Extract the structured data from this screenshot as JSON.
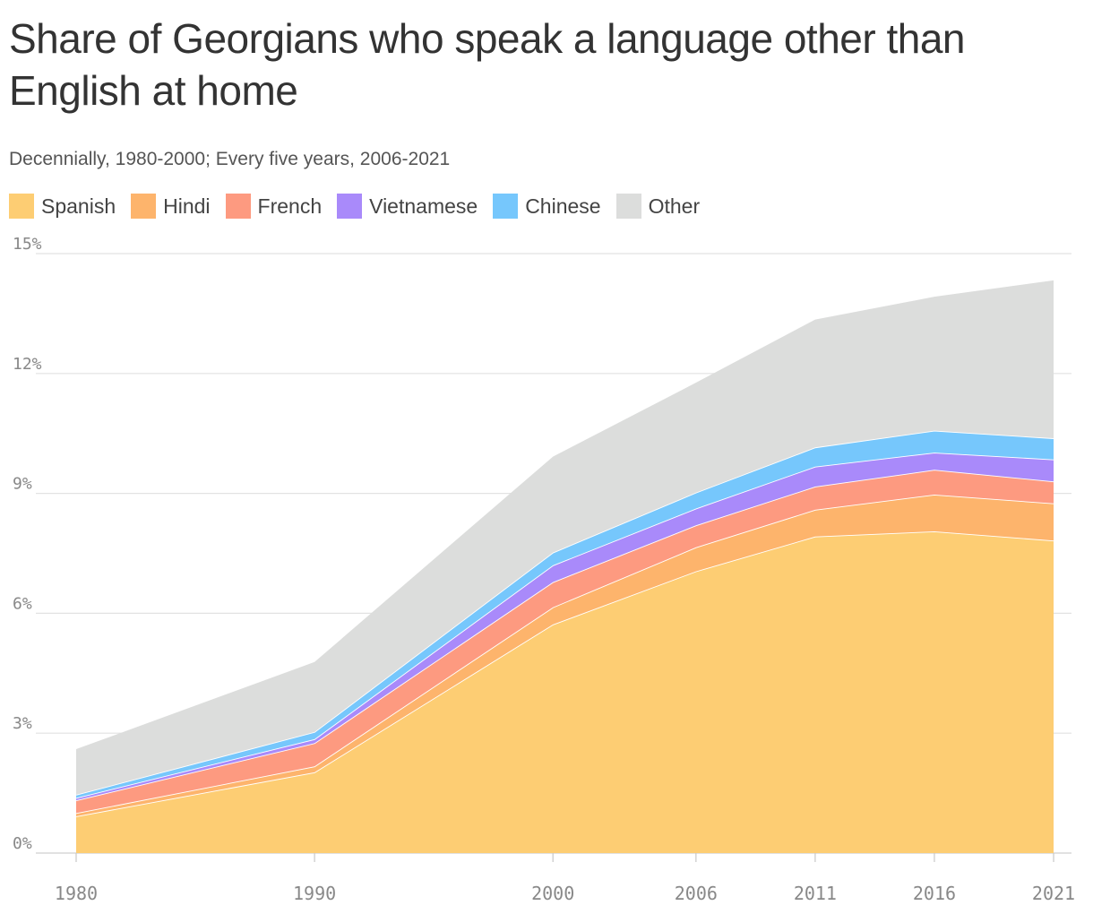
{
  "chart_data": {
    "type": "area",
    "title": "Share of Georgians who speak a language other than English at home",
    "subtitle": "Decennially, 1980-2000; Every five years, 2006-2021",
    "x": [
      1980,
      1990,
      2000,
      2006,
      2011,
      2016,
      2021
    ],
    "x_tick_labels": [
      "1980",
      "1990",
      "2000",
      "2006",
      "2011",
      "2016",
      "2021"
    ],
    "y_ticks": [
      0,
      3,
      6,
      9,
      12,
      15
    ],
    "y_tick_labels": [
      "0%",
      "3%",
      "6%",
      "9%",
      "12%",
      "15%"
    ],
    "ylim": [
      0,
      15
    ],
    "stacked": true,
    "grid": true,
    "legend_position": "top-left",
    "series": [
      {
        "name": "Spanish",
        "color": "#fdcd73",
        "values": [
          0.92,
          2.02,
          5.72,
          7.05,
          7.92,
          8.05,
          7.82
        ]
      },
      {
        "name": "Hindi",
        "color": "#fdb46c",
        "values": [
          0.08,
          0.15,
          0.43,
          0.6,
          0.67,
          0.92,
          0.93
        ]
      },
      {
        "name": "French",
        "color": "#fd9a80",
        "values": [
          0.32,
          0.58,
          0.63,
          0.55,
          0.58,
          0.62,
          0.55
        ]
      },
      {
        "name": "Vietnamese",
        "color": "#a98afa",
        "values": [
          0.06,
          0.1,
          0.42,
          0.42,
          0.5,
          0.43,
          0.55
        ]
      },
      {
        "name": "Chinese",
        "color": "#76c7fc",
        "values": [
          0.08,
          0.18,
          0.32,
          0.4,
          0.48,
          0.55,
          0.53
        ]
      },
      {
        "name": "Other",
        "color": "#dcdddc",
        "values": [
          1.14,
          1.75,
          2.4,
          2.75,
          3.2,
          3.35,
          3.95
        ]
      }
    ]
  }
}
